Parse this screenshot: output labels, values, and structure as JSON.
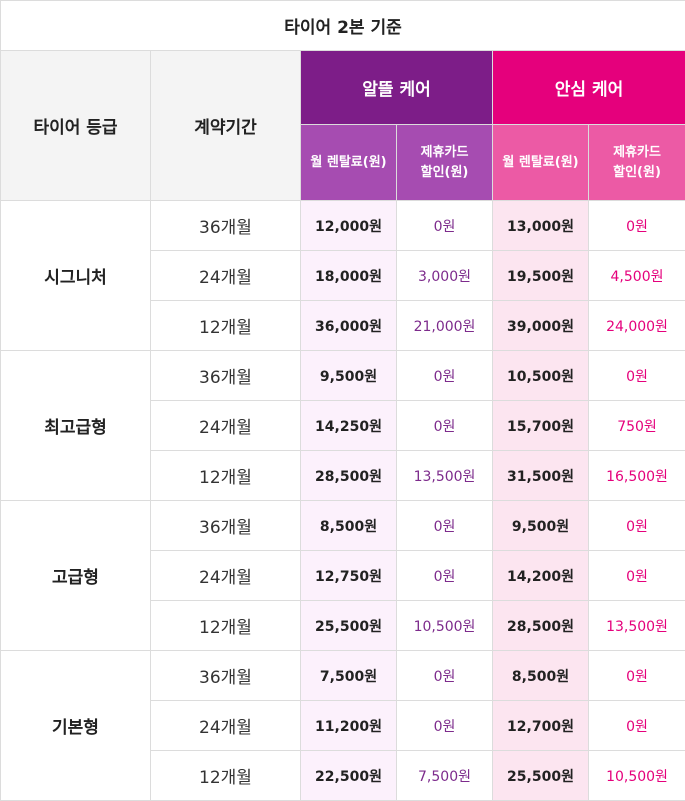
{
  "title": "타이어 2본 기준",
  "headers": {
    "grade": "타이어 등급",
    "term": "계약기간",
    "altl_care": "알뜰 케어",
    "ansim_care": "안심 케어",
    "monthly_rent": "월 렌탈료(원)",
    "card_discount_line1": "제휴카드",
    "card_discount_line2": "할인(원)"
  },
  "colors": {
    "altl_header": "#7d1d88",
    "altl_subheader": "#a64cb1",
    "ansim_header": "#e5007c",
    "ansim_subheader": "#ec5aa5"
  },
  "grades": [
    {
      "name": "시그니처",
      "rows": [
        {
          "term": "36개월",
          "altl_rent": "12,000원",
          "altl_disc": "0원",
          "ansim_rent": "13,000원",
          "ansim_disc": "0원"
        },
        {
          "term": "24개월",
          "altl_rent": "18,000원",
          "altl_disc": "3,000원",
          "ansim_rent": "19,500원",
          "ansim_disc": "4,500원"
        },
        {
          "term": "12개월",
          "altl_rent": "36,000원",
          "altl_disc": "21,000원",
          "ansim_rent": "39,000원",
          "ansim_disc": "24,000원"
        }
      ]
    },
    {
      "name": "최고급형",
      "rows": [
        {
          "term": "36개월",
          "altl_rent": "9,500원",
          "altl_disc": "0원",
          "ansim_rent": "10,500원",
          "ansim_disc": "0원"
        },
        {
          "term": "24개월",
          "altl_rent": "14,250원",
          "altl_disc": "0원",
          "ansim_rent": "15,700원",
          "ansim_disc": "750원"
        },
        {
          "term": "12개월",
          "altl_rent": "28,500원",
          "altl_disc": "13,500원",
          "ansim_rent": "31,500원",
          "ansim_disc": "16,500원"
        }
      ]
    },
    {
      "name": "고급형",
      "rows": [
        {
          "term": "36개월",
          "altl_rent": "8,500원",
          "altl_disc": "0원",
          "ansim_rent": "9,500원",
          "ansim_disc": "0원"
        },
        {
          "term": "24개월",
          "altl_rent": "12,750원",
          "altl_disc": "0원",
          "ansim_rent": "14,200원",
          "ansim_disc": "0원"
        },
        {
          "term": "12개월",
          "altl_rent": "25,500원",
          "altl_disc": "10,500원",
          "ansim_rent": "28,500원",
          "ansim_disc": "13,500원"
        }
      ]
    },
    {
      "name": "기본형",
      "rows": [
        {
          "term": "36개월",
          "altl_rent": "7,500원",
          "altl_disc": "0원",
          "ansim_rent": "8,500원",
          "ansim_disc": "0원"
        },
        {
          "term": "24개월",
          "altl_rent": "11,200원",
          "altl_disc": "0원",
          "ansim_rent": "12,700원",
          "ansim_disc": "0원"
        },
        {
          "term": "12개월",
          "altl_rent": "22,500원",
          "altl_disc": "7,500원",
          "ansim_rent": "25,500원",
          "ansim_disc": "10,500원"
        }
      ]
    }
  ]
}
